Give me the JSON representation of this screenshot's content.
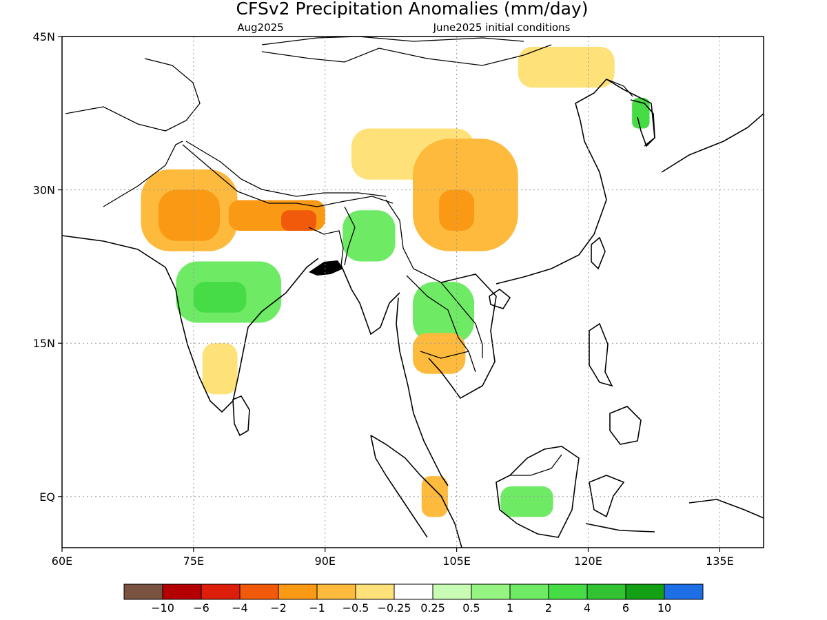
{
  "title": "CFSv2 Precipitation Anomalies (mm/day)",
  "subtitle_left": "Aug2025",
  "subtitle_right": "June2025 initial conditions",
  "axes": {
    "lon_labels": [
      "60E",
      "75E",
      "90E",
      "105E",
      "120E",
      "135E"
    ],
    "lat_labels": [
      "45N",
      "30N",
      "15N",
      "EQ"
    ],
    "lon_range": [
      60,
      140
    ],
    "lat_range": [
      -5,
      45
    ],
    "grid": "dotted"
  },
  "colorbar": {
    "colors": [
      "#7a5240",
      "#b40000",
      "#dc1e0a",
      "#f05a0a",
      "#fa9914",
      "#fdba3c",
      "#fee178",
      "#ffffff",
      "#c8fcb4",
      "#96f582",
      "#6eea64",
      "#46dc46",
      "#32c332",
      "#14a014",
      "#1e6ee6"
    ],
    "labels": [
      "−10",
      "−6",
      "−4",
      "−2",
      "−1",
      "−0.5",
      "−0.25",
      "0.25",
      "0.5",
      "1",
      "2",
      "4",
      "6",
      "10"
    ]
  },
  "map_data": {
    "regions": [
      {
        "value": -1,
        "lon": [
          69,
          80
        ],
        "lat": [
          24,
          32
        ]
      },
      {
        "value": -2,
        "lon": [
          71,
          78
        ],
        "lat": [
          25,
          30
        ]
      },
      {
        "value": -2,
        "lon": [
          79,
          90
        ],
        "lat": [
          26,
          29
        ]
      },
      {
        "value": -4,
        "lon": [
          85,
          89
        ],
        "lat": [
          26,
          28
        ]
      },
      {
        "value": -0.5,
        "lon": [
          93,
          107
        ],
        "lat": [
          31,
          36
        ]
      },
      {
        "value": -1,
        "lon": [
          100,
          112
        ],
        "lat": [
          24,
          35
        ]
      },
      {
        "value": -2,
        "lon": [
          103,
          107
        ],
        "lat": [
          26,
          30
        ]
      },
      {
        "value": -0.5,
        "lon": [
          112,
          123
        ],
        "lat": [
          40,
          44
        ]
      },
      {
        "value": 1,
        "lon": [
          73,
          85
        ],
        "lat": [
          17,
          23
        ]
      },
      {
        "value": 2,
        "lon": [
          75,
          81
        ],
        "lat": [
          18,
          21
        ]
      },
      {
        "value": 1,
        "lon": [
          92,
          98
        ],
        "lat": [
          23,
          28
        ]
      },
      {
        "value": 1,
        "lon": [
          100,
          107
        ],
        "lat": [
          15,
          21
        ]
      },
      {
        "value": 2,
        "lon": [
          125,
          127
        ],
        "lat": [
          36,
          39
        ]
      },
      {
        "value": 1,
        "lon": [
          110,
          116
        ],
        "lat": [
          -2,
          1
        ]
      },
      {
        "value": -1,
        "lon": [
          101,
          104
        ],
        "lat": [
          -2,
          2
        ]
      },
      {
        "value": -0.5,
        "lon": [
          76,
          80
        ],
        "lat": [
          10,
          15
        ]
      },
      {
        "value": -1,
        "lon": [
          100,
          106
        ],
        "lat": [
          12,
          16
        ]
      }
    ]
  }
}
